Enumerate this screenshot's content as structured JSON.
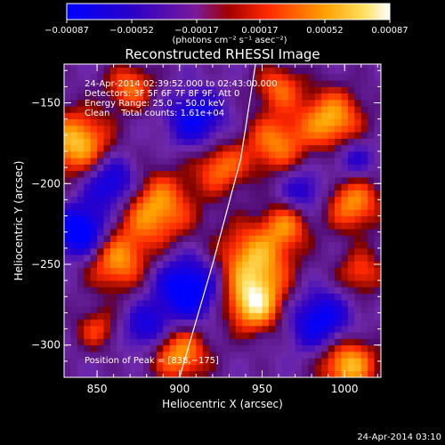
{
  "chart_data": {
    "type": "heatmap",
    "title": "Reconstructed RHESSI Image",
    "xlabel": "Heliocentric X (arcsec)",
    "ylabel": "Heliocentric Y (arcsec)",
    "xlim": [
      830,
      1022
    ],
    "ylim": [
      -320,
      -126
    ],
    "x_ticks": [
      850,
      900,
      950,
      1000
    ],
    "y_ticks": [
      -150,
      -200,
      -250,
      -300
    ],
    "x_tick_labels": [
      "850",
      "900",
      "950",
      "1000"
    ],
    "y_tick_labels": [
      "−150",
      "−200",
      "−250",
      "−300"
    ],
    "colorbar": {
      "range": [
        -0.00087,
        0.00087
      ],
      "ticks": [
        -0.00087,
        -0.00052,
        -0.00017,
        0.00017,
        0.00052,
        0.00087
      ],
      "tick_labels": [
        "−0.00087",
        "−0.00052",
        "−0.00017",
        "0.00017",
        "0.00052",
        "0.00087"
      ],
      "unit_label": "(photons cm⁻² s⁻¹ asec⁻²)"
    },
    "annotations": {
      "time": "24‑Apr‑2014 02:39:52.000 to 02:43:00.000",
      "detectors": "Detectors: 3F 5F 6F 7F 8F 9F, Att 0",
      "energy": "Energy Range: 25.0 − 50.0 keV",
      "clean": "Clean    Total counts: 1.61e+04",
      "peak": "Position of Peak = [838,−175]"
    },
    "peak": [
      838,
      -175
    ],
    "limb_curve": [
      [
        900,
        -320
      ],
      [
        920,
        -250
      ],
      [
        937,
        -185
      ],
      [
        946,
        -126
      ]
    ],
    "sources": [
      {
        "x": 838,
        "y": -175,
        "r": 14,
        "v": 0.00087
      },
      {
        "x": 885,
        "y": -215,
        "r": 16,
        "v": 0.0008
      },
      {
        "x": 862,
        "y": -248,
        "r": 13,
        "v": 0.0007
      },
      {
        "x": 945,
        "y": -248,
        "r": 16,
        "v": 0.00082
      },
      {
        "x": 945,
        "y": -275,
        "r": 12,
        "v": 0.00087
      },
      {
        "x": 992,
        "y": -160,
        "r": 13,
        "v": 0.0008
      },
      {
        "x": 1005,
        "y": -212,
        "r": 12,
        "v": 0.0007
      },
      {
        "x": 958,
        "y": -175,
        "r": 13,
        "v": 0.00065
      },
      {
        "x": 925,
        "y": -190,
        "r": 11,
        "v": 0.0006
      },
      {
        "x": 900,
        "y": -305,
        "r": 12,
        "v": 0.00075
      },
      {
        "x": 1002,
        "y": -312,
        "r": 12,
        "v": 0.00085
      },
      {
        "x": 870,
        "y": -140,
        "r": 10,
        "v": 0.0006
      },
      {
        "x": 960,
        "y": -140,
        "r": 10,
        "v": 0.00055
      },
      {
        "x": 1010,
        "y": -255,
        "r": 10,
        "v": 0.0005
      },
      {
        "x": 850,
        "y": -290,
        "r": 9,
        "v": 0.00045
      },
      {
        "x": 965,
        "y": -225,
        "r": 10,
        "v": 0.00055
      },
      {
        "x": 860,
        "y": -200,
        "r": -12,
        "v": -0.0007
      },
      {
        "x": 910,
        "y": -160,
        "r": -12,
        "v": -0.0006
      },
      {
        "x": 905,
        "y": -265,
        "r": -14,
        "v": -0.0008
      },
      {
        "x": 985,
        "y": -285,
        "r": -13,
        "v": -0.00065
      },
      {
        "x": 840,
        "y": -230,
        "r": -11,
        "v": -0.00085
      },
      {
        "x": 975,
        "y": -205,
        "r": -10,
        "v": -0.00045
      },
      {
        "x": 1005,
        "y": -185,
        "r": -9,
        "v": -0.0004
      },
      {
        "x": 880,
        "y": -290,
        "r": -10,
        "v": -0.0005
      }
    ]
  },
  "footer": {
    "timestamp": "24‑Apr‑2014 03:10"
  }
}
